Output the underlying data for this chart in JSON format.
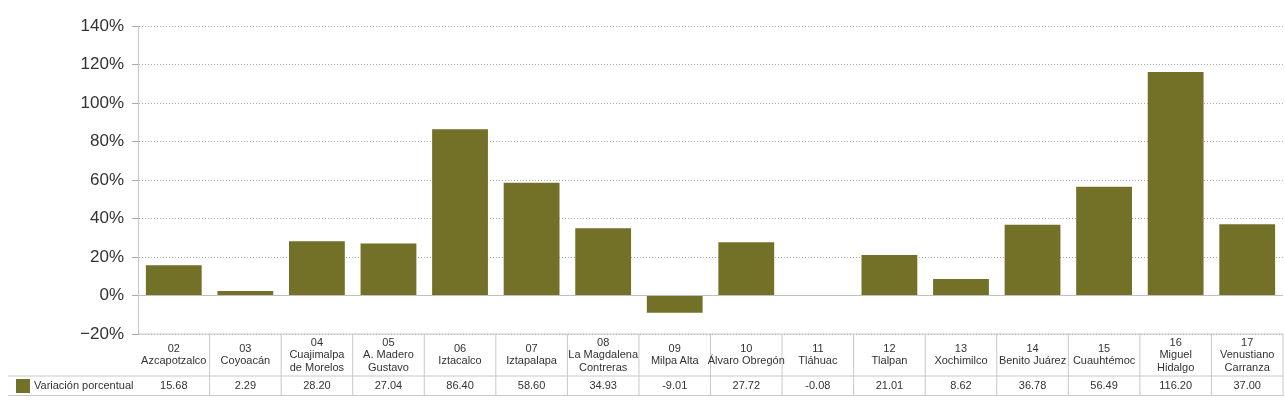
{
  "chart_data": {
    "type": "bar",
    "categories": [
      "02\nAzcapotzalco",
      "03\nCoyoacán",
      "04\nCuajimalpa\nde Morelos",
      "05\nA. Madero\nGustavo",
      "06\nIztacalco",
      "07\nIztapalapa",
      "08\nLa Magdalena\nContreras",
      "09\nMilpa Alta",
      "10\nÁlvaro Obregón",
      "11\nTláhuac",
      "12\nTlalpan",
      "13\nXochimilco",
      "14\nBenito Juárez",
      "15\nCuauhtémoc",
      "16\nMiguel\nHidalgo",
      "17\nVenustiano\nCarranza"
    ],
    "series": [
      {
        "name": "Variación porcentual",
        "color": "#737128",
        "values": [
          15.68,
          2.29,
          28.2,
          27.04,
          86.4,
          58.6,
          34.93,
          -9.01,
          27.72,
          -0.08,
          21.01,
          8.62,
          36.78,
          56.49,
          116.2,
          37.0
        ],
        "value_labels": [
          "15.68",
          "2.29",
          "28.20",
          "27.04",
          "86.40",
          "58.60",
          "34.93",
          "-9.01",
          "27.72",
          "-0.08",
          "21.01",
          "8.62",
          "36.78",
          "56.49",
          "116.20",
          "37.00"
        ]
      }
    ],
    "ylim": [
      -20,
      140
    ],
    "yticks": [
      {
        "value": -20,
        "label": "−20%"
      },
      {
        "value": 0,
        "label": "0%"
      },
      {
        "value": 20,
        "label": "20%"
      },
      {
        "value": 40,
        "label": "40%"
      },
      {
        "value": 60,
        "label": "60%"
      },
      {
        "value": 80,
        "label": "80%"
      },
      {
        "value": 100,
        "label": "100%"
      },
      {
        "value": 120,
        "label": "120%"
      },
      {
        "value": 140,
        "label": "140%"
      }
    ],
    "grid": "y",
    "legend": "bottom left"
  }
}
